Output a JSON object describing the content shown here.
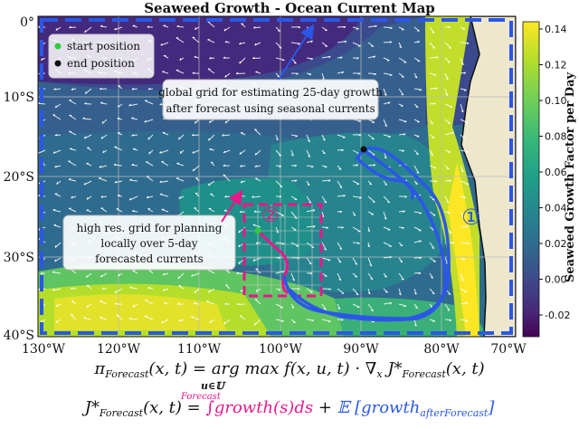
{
  "title": "Seaweed Growth - Ocean Current Map",
  "axes": {
    "y_ticks": [
      "0°",
      "10°S",
      "20°S",
      "30°S",
      "40°S"
    ],
    "x_ticks": [
      "130°W",
      "120°W",
      "110°W",
      "100°W",
      "90°W",
      "80°W",
      "70°W"
    ]
  },
  "colorbar": {
    "label": "Seaweed Growth Factor per Day",
    "ticks": [
      "0.14",
      "0.12",
      "0.10",
      "0.08",
      "0.06",
      "0.04",
      "0.02",
      "0.00",
      "-0.02"
    ],
    "colors": [
      "#fde725",
      "#b5de2b",
      "#6ece58",
      "#35b779",
      "#1f9e89",
      "#26828e",
      "#31688e",
      "#3e4989",
      "#482878",
      "#440154"
    ]
  },
  "legend": {
    "start": "start position",
    "end": "end position",
    "start_color": "#2ecc40",
    "end_color": "#111111"
  },
  "annotations": {
    "global_grid": [
      "global grid for estimating 25-day growth",
      "after forecast using seasonal currents"
    ],
    "high_res_grid": [
      "high res. grid for planning",
      "locally over 5-day",
      "forecasted currents"
    ],
    "marker_1": "①",
    "marker_2": "②"
  },
  "colors": {
    "pink": "#e8178a",
    "blue": "#2b57e8",
    "land": "#ede7cc"
  },
  "equations": {
    "pi_lhs": "π",
    "pi_sub": "Forecast",
    "pi_rhs": "(x, t) = arg max f(x, u, t) · ∇",
    "pi_x": "x",
    "pi_J": " J*",
    "pi_Jsub": "Forecast",
    "pi_end": "(x, t)",
    "argmax_sub": "u∈𝕌",
    "J_lhs": "J*",
    "J_sub": "Forecast",
    "J_mid": "(x, t) = ",
    "J_integral": "∫growth(s)ds",
    "J_plus": " + ",
    "J_E": "𝔼 [growth",
    "J_Esub": "afterForecast",
    "J_close": "]",
    "integral_label": "Forecast"
  }
}
